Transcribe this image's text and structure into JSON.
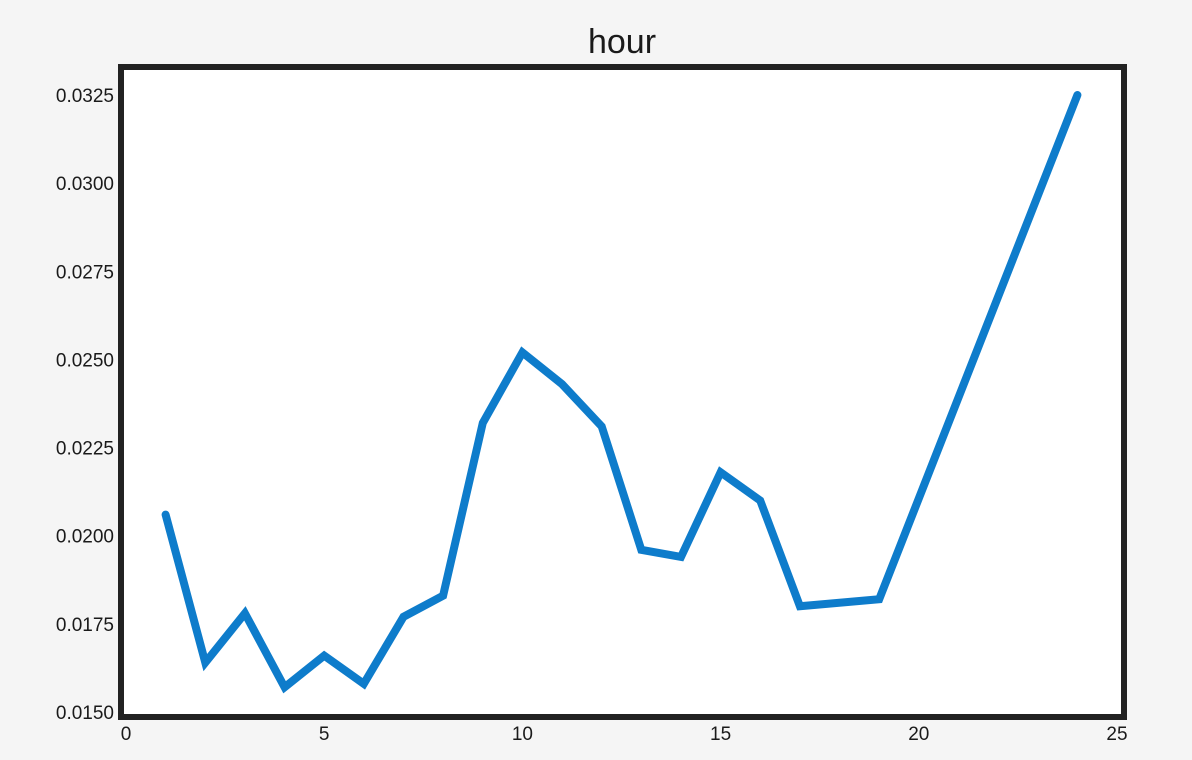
{
  "chart_data": {
    "type": "line",
    "title": "hour",
    "xlabel": "",
    "ylabel": "",
    "xlim": [
      0,
      25
    ],
    "ylim": [
      0.015,
      0.0327
    ],
    "x_ticks": [
      0,
      5,
      10,
      15,
      20,
      25
    ],
    "y_ticks": [
      0.015,
      0.0175,
      0.02,
      0.0225,
      0.025,
      0.0275,
      0.03,
      0.0325
    ],
    "x_tick_labels": [
      "0",
      "5",
      "10",
      "15",
      "20",
      "25"
    ],
    "y_tick_labels": [
      "0.0150",
      "0.0175",
      "0.0200",
      "0.0225",
      "0.0250",
      "0.0275",
      "0.0300",
      "0.0325"
    ],
    "grid": false,
    "legend": "none",
    "series": [
      {
        "color": "#0e7ccb",
        "x": [
          1,
          2,
          3,
          4,
          5,
          6,
          7,
          8,
          9,
          10,
          11,
          12,
          13,
          14,
          15,
          16,
          17,
          19,
          24
        ],
        "values": [
          0.0206,
          0.0164,
          0.0178,
          0.0157,
          0.0166,
          0.0158,
          0.0177,
          0.0183,
          0.0232,
          0.0252,
          0.0243,
          0.0231,
          0.0196,
          0.0194,
          0.0218,
          0.021,
          0.018,
          0.0182,
          0.0325
        ]
      }
    ]
  }
}
